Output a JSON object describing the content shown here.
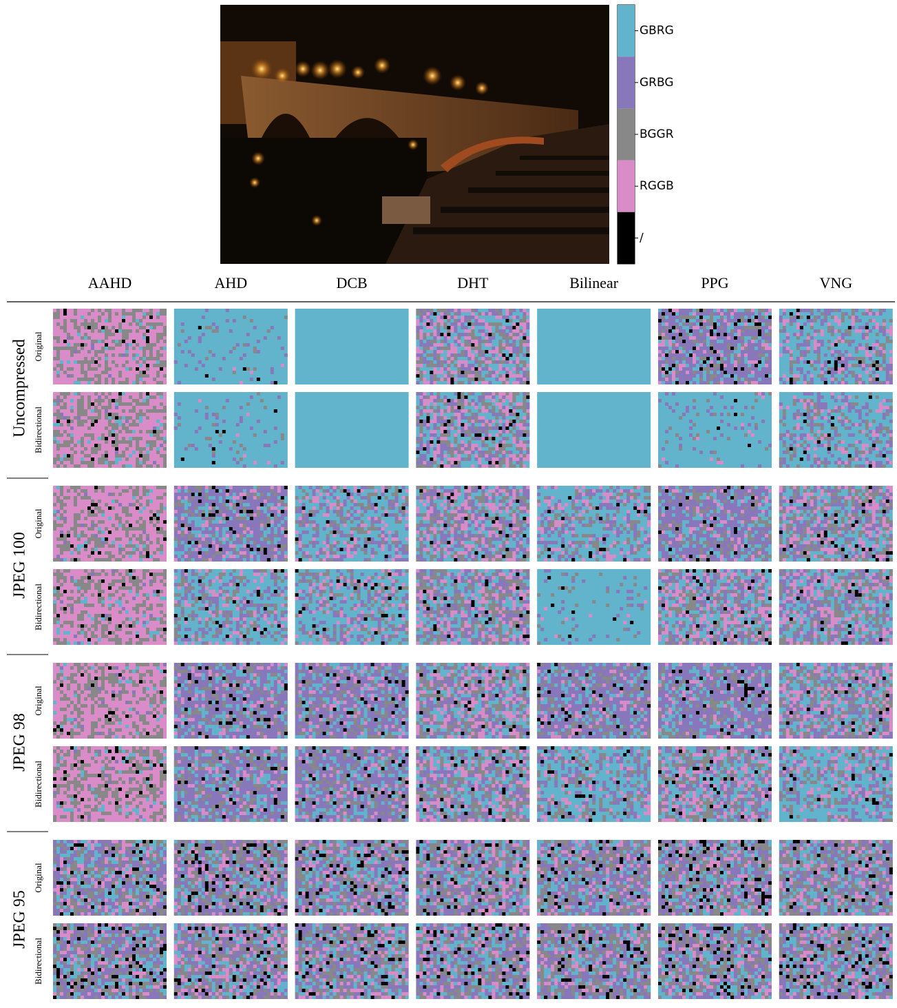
{
  "colorbar": {
    "labels": [
      "GBRG",
      "GRBG",
      "BGGR",
      "RGGB",
      "/"
    ],
    "colors": [
      "#62b3cc",
      "#8877bb",
      "#888888",
      "#d98cc8",
      "#000000"
    ]
  },
  "columns": [
    "AAHD",
    "AHD",
    "DCB",
    "DHT",
    "Bilinear",
    "PPG",
    "VNG"
  ],
  "row_groups": [
    {
      "name": "Uncompressed",
      "rows": [
        "Original",
        "Bidirectional"
      ]
    },
    {
      "name": "JPEG 100",
      "rows": [
        "Original",
        "Bidirectional"
      ]
    },
    {
      "name": "JPEG 98",
      "rows": [
        "Original",
        "Bidirectional"
      ]
    },
    {
      "name": "JPEG 95",
      "rows": [
        "Original",
        "Bidirectional"
      ]
    }
  ]
}
